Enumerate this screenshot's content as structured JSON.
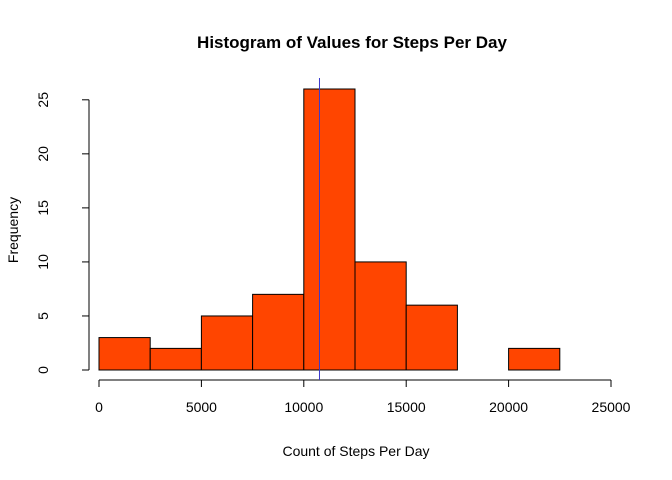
{
  "chart_data": {
    "type": "bar",
    "title": "Histogram of Values for Steps Per Day",
    "xlabel": "Count of Steps Per Day",
    "ylabel": "Frequency",
    "xlim": [
      0,
      25000
    ],
    "ylim": [
      0,
      26
    ],
    "x_ticks": [
      0,
      5000,
      10000,
      15000,
      20000,
      25000
    ],
    "y_ticks": [
      0,
      5,
      10,
      15,
      20,
      25
    ],
    "bins": [
      {
        "start": 0,
        "end": 2500,
        "count": 3
      },
      {
        "start": 2500,
        "end": 5000,
        "count": 2
      },
      {
        "start": 5000,
        "end": 7500,
        "count": 5
      },
      {
        "start": 7500,
        "end": 10000,
        "count": 7
      },
      {
        "start": 10000,
        "end": 12500,
        "count": 26
      },
      {
        "start": 12500,
        "end": 15000,
        "count": 10
      },
      {
        "start": 15000,
        "end": 17500,
        "count": 6
      },
      {
        "start": 17500,
        "end": 20000,
        "count": 0
      },
      {
        "start": 20000,
        "end": 22500,
        "count": 2
      },
      {
        "start": 22500,
        "end": 25000,
        "count": 0
      }
    ],
    "reference_line_x": 10766,
    "grid": false,
    "colors": {
      "bar_fill": "#ff4500",
      "reference_line": "#3a3acd"
    }
  }
}
